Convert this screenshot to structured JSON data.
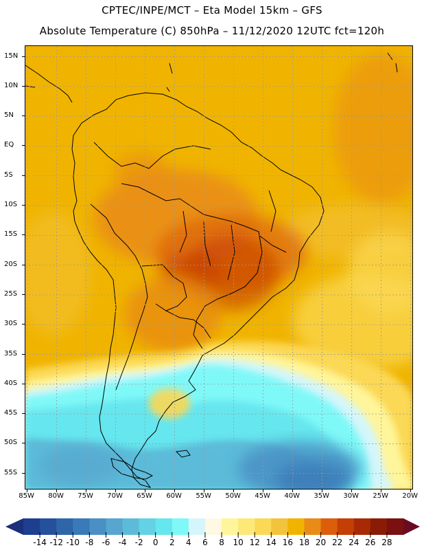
{
  "header": {
    "line1": "CPTEC/INPE/MCT –   Eta Model 15km – GFS",
    "line2": "Absolute Temperature (C) 850hPa – 11/12/2020 12UTC fct=120h"
  },
  "map": {
    "lat_labels": [
      "15N",
      "10N",
      "5N",
      "EQ",
      "5S",
      "10S",
      "15S",
      "20S",
      "25S",
      "30S",
      "35S",
      "40S",
      "45S",
      "50S",
      "55S"
    ],
    "lon_labels": [
      "85W",
      "80W",
      "75W",
      "70W",
      "65W",
      "60W",
      "55W",
      "50W",
      "45W",
      "40W",
      "35W",
      "30W",
      "25W",
      "20W"
    ],
    "lat_values": [
      15,
      10,
      5,
      0,
      -5,
      -10,
      -15,
      -20,
      -25,
      -30,
      -35,
      -40,
      -45,
      -50,
      -55
    ],
    "lon_values": [
      -85,
      -80,
      -75,
      -70,
      -65,
      -60,
      -55,
      -50,
      -45,
      -40,
      -35,
      -30,
      -25,
      -20
    ],
    "extent": {
      "lon_min": -85.3,
      "lon_max": -19.5,
      "lat_min": -57.8,
      "lat_max": 16.8
    },
    "background_color": "#f0b400",
    "land_outline_color": "#000000",
    "grid_color": "#9a9a9a"
  },
  "colorbar": {
    "labels": [
      "-14",
      "-12",
      "-10",
      "-8",
      "-6",
      "-4",
      "-2",
      "0",
      "2",
      "4",
      "6",
      "8",
      "10",
      "12",
      "14",
      "16",
      "18",
      "20",
      "22",
      "24",
      "26",
      "28"
    ],
    "colors": [
      "#1e3f8f",
      "#25519c",
      "#2e66aa",
      "#3a7ab8",
      "#4a90c4",
      "#56a6cf",
      "#5cbbd9",
      "#63d2e4",
      "#66e6ee",
      "#7ff8f8",
      "#d4f6fb",
      "#fff8e2",
      "#fff59a",
      "#fde878",
      "#fbd855",
      "#f4c33c",
      "#f0b400",
      "#e98b14",
      "#dc5e0a",
      "#c53e05",
      "#a82a04",
      "#8a1c06",
      "#7a1010"
    ],
    "underflow_color": "#1b2f7a",
    "overflow_color": "#6b0b23"
  }
}
